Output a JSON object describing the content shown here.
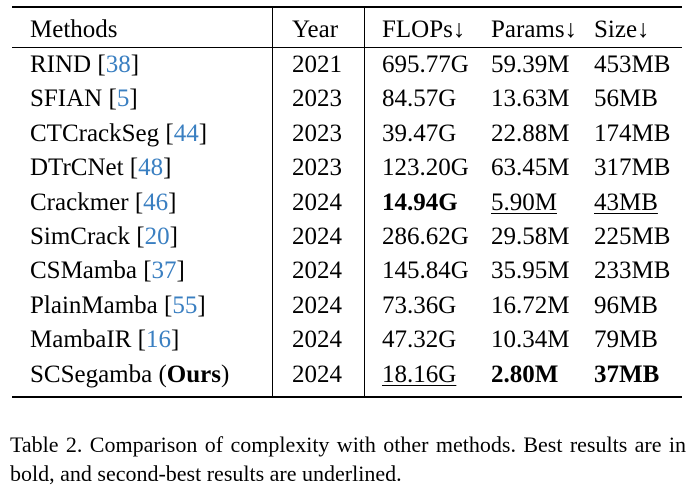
{
  "table": {
    "headers": {
      "method": "Methods",
      "year": "Year",
      "flops": "FLOPs↓",
      "params": "Params↓",
      "size": "Size↓"
    },
    "rows": [
      {
        "name": "RIND ",
        "ref": "[38]",
        "ref_num": "38",
        "suffix": "",
        "year": "2021",
        "flops": "695.77G",
        "params": "59.39M",
        "size": "453MB"
      },
      {
        "name": "SFIAN ",
        "ref": "[5]",
        "ref_num": "5",
        "suffix": "",
        "year": "2023",
        "flops": "84.57G",
        "params": "13.63M",
        "size": "56MB"
      },
      {
        "name": "CTCrackSeg ",
        "ref": "[44]",
        "ref_num": "44",
        "suffix": "",
        "year": "2023",
        "flops": "39.47G",
        "params": "22.88M",
        "size": "174MB"
      },
      {
        "name": "DTrCNet ",
        "ref": "[48]",
        "ref_num": "48",
        "suffix": "",
        "year": "2023",
        "flops": "123.20G",
        "params": "63.45M",
        "size": "317MB"
      },
      {
        "name": "Crackmer ",
        "ref": "[46]",
        "ref_num": "46",
        "suffix": "",
        "year": "2024",
        "flops": "14.94G",
        "params": "5.90M",
        "size": "43MB"
      },
      {
        "name": "SimCrack ",
        "ref": "[20]",
        "ref_num": "20",
        "suffix": "",
        "year": "2024",
        "flops": "286.62G",
        "params": "29.58M",
        "size": "225MB"
      },
      {
        "name": "CSMamba ",
        "ref": "[37]",
        "ref_num": "37",
        "suffix": "",
        "year": "2024",
        "flops": "145.84G",
        "params": "35.95M",
        "size": "233MB"
      },
      {
        "name": "PlainMamba ",
        "ref": "[55]",
        "ref_num": "55",
        "suffix": "",
        "year": "2024",
        "flops": "73.36G",
        "params": "16.72M",
        "size": "96MB"
      },
      {
        "name": "MambaIR ",
        "ref": "[16]",
        "ref_num": "16",
        "suffix": "",
        "year": "2024",
        "flops": "47.32G",
        "params": "10.34M",
        "size": "79MB"
      },
      {
        "name": "SCSegamba (",
        "ours": "Ours",
        "suffix": ")",
        "year": "2024",
        "flops": "18.16G",
        "params": "2.80M",
        "size": "37MB"
      }
    ],
    "styles": {
      "bold_cells": [
        "4.flops",
        "9.params",
        "9.size"
      ],
      "underlined_cells": [
        "9.flops",
        "4.params",
        "4.size"
      ]
    },
    "colors": {
      "citation": "#3a7fc1"
    }
  },
  "caption": "Table 2. Comparison of complexity with other methods. Best results are in bold, and second-best results are underlined."
}
